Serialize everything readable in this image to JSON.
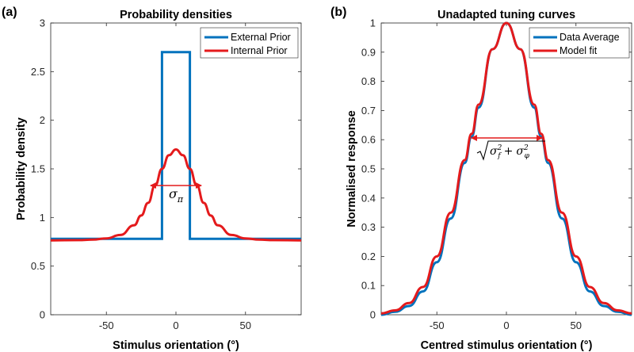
{
  "figure": {
    "panel_labels": [
      "(a)",
      "(b)"
    ]
  },
  "chart_data": [
    {
      "type": "line",
      "panel": "(a)",
      "title": "Probability densities",
      "xlabel": "Stimulus orientation (°)",
      "ylabel": "Probability density",
      "xlim": [
        -90,
        90
      ],
      "ylim": [
        0,
        3
      ],
      "xticks": [
        -50,
        0,
        50
      ],
      "xtick_labels": [
        "-50",
        "0",
        "50"
      ],
      "yticks": [
        0,
        0.5,
        1,
        1.5,
        2,
        2.5,
        3
      ],
      "ytick_labels": [
        "0",
        "0.5",
        "1",
        "1.5",
        "2",
        "2.5",
        "3"
      ],
      "legend_position": "top-right",
      "series": [
        {
          "name": "External Prior",
          "color": "#0072BD",
          "x": [
            -90,
            -10,
            -10,
            10,
            10,
            90
          ],
          "y": [
            0.78,
            0.78,
            2.7,
            2.7,
            0.78,
            0.78
          ]
        },
        {
          "name": "Internal Prior",
          "color": "#E41A1C",
          "x": [
            -90,
            -70,
            -60,
            -50,
            -40,
            -30,
            -25,
            -20,
            -15,
            -10,
            -5,
            0,
            5,
            10,
            15,
            20,
            25,
            30,
            40,
            50,
            60,
            70,
            90
          ],
          "y": [
            0.765,
            0.767,
            0.772,
            0.785,
            0.82,
            0.92,
            1.02,
            1.15,
            1.33,
            1.5,
            1.64,
            1.7,
            1.64,
            1.5,
            1.33,
            1.15,
            1.02,
            0.92,
            0.82,
            0.785,
            0.772,
            0.767,
            0.765
          ]
        }
      ],
      "annotations": [
        {
          "text": "σ_π",
          "x": 0,
          "y": 1.28,
          "arrow_from": -19,
          "arrow_to": 19,
          "arrow_y": 1.35
        }
      ]
    },
    {
      "type": "line",
      "panel": "(b)",
      "title": "Unadapted tuning curves",
      "xlabel": "Centred stimulus orientation (°)",
      "ylabel": "Normalised response",
      "xlim": [
        -90,
        90
      ],
      "ylim": [
        0,
        1
      ],
      "xticks": [
        -50,
        0,
        50
      ],
      "xtick_labels": [
        "-50",
        "0",
        "50"
      ],
      "yticks": [
        0,
        0.1,
        0.2,
        0.3,
        0.4,
        0.5,
        0.6,
        0.7,
        0.8,
        0.9,
        1
      ],
      "ytick_labels": [
        "0",
        "0.1",
        "0.2",
        "0.3",
        "0.4",
        "0.5",
        "0.6",
        "0.7",
        "0.8",
        "0.9",
        "1"
      ],
      "legend_position": "top-right",
      "series": [
        {
          "name": "Data Average",
          "color": "#0072BD",
          "x": [
            -90,
            -80,
            -70,
            -60,
            -50,
            -40,
            -30,
            -25,
            -20,
            -10,
            0,
            10,
            20,
            25,
            30,
            40,
            50,
            60,
            70,
            80,
            90
          ],
          "y": [
            0.0,
            0.01,
            0.03,
            0.08,
            0.18,
            0.33,
            0.52,
            0.61,
            0.71,
            0.91,
            1.0,
            0.91,
            0.71,
            0.61,
            0.52,
            0.33,
            0.18,
            0.08,
            0.03,
            0.01,
            0.0
          ]
        },
        {
          "name": "Model fit",
          "color": "#E41A1C",
          "x": [
            -90,
            -80,
            -70,
            -60,
            -50,
            -40,
            -30,
            -25,
            -20,
            -10,
            0,
            10,
            20,
            25,
            30,
            40,
            50,
            60,
            70,
            80,
            90
          ],
          "y": [
            0.005,
            0.015,
            0.04,
            0.095,
            0.2,
            0.35,
            0.53,
            0.62,
            0.72,
            0.91,
            1.0,
            0.91,
            0.72,
            0.62,
            0.53,
            0.35,
            0.2,
            0.095,
            0.04,
            0.015,
            0.005
          ]
        }
      ],
      "annotations": [
        {
          "text": "√(σ_f² + σ_φ²)",
          "arrow_from": -25,
          "arrow_to": 25,
          "arrow_y": 0.61
        }
      ]
    }
  ]
}
